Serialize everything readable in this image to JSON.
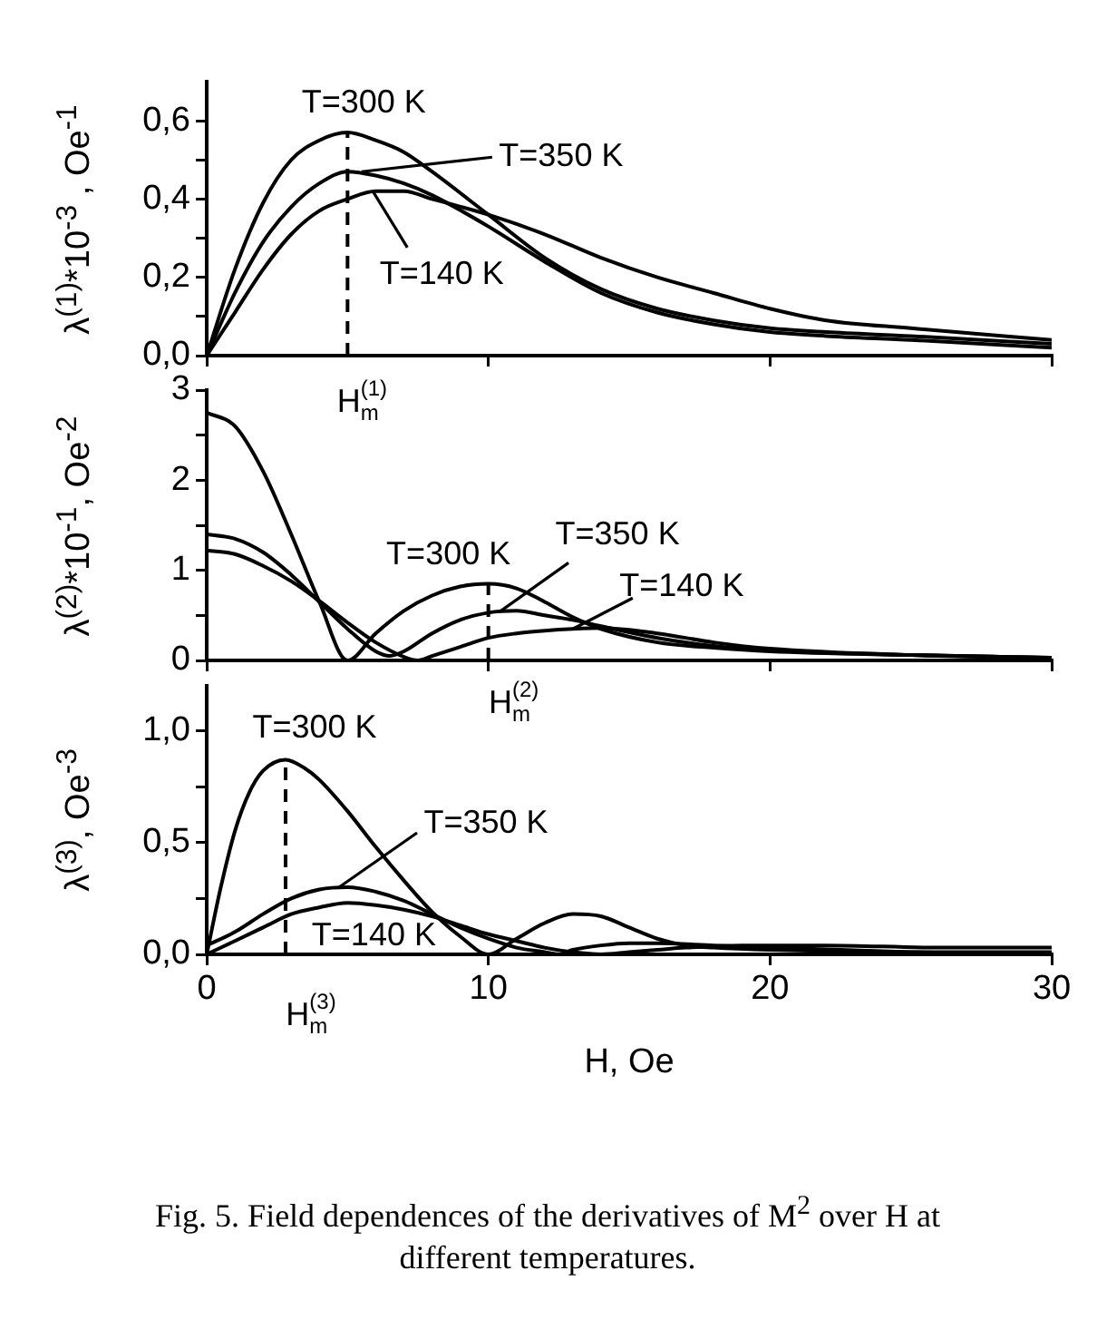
{
  "chart_data": [
    {
      "type": "line",
      "ylabel": "λ$^{(1)}$*10$^{-3}$ , Oe$^{-1}$",
      "xlim": [
        0,
        30
      ],
      "xticks": [
        0,
        10,
        20,
        30
      ],
      "ylim": [
        0,
        0.7
      ],
      "yticks": [
        {
          "value": 0,
          "label": "0,0"
        },
        {
          "value": 0.1,
          "label": null
        },
        {
          "value": 0.2,
          "label": "0,2"
        },
        {
          "value": 0.3,
          "label": null
        },
        {
          "value": 0.4,
          "label": "0,4"
        },
        {
          "value": 0.5,
          "label": null
        },
        {
          "value": 0.6,
          "label": "0,6"
        }
      ],
      "tick_labels": "y",
      "grid": false,
      "legend": false,
      "marker": "none",
      "line_style": "solid",
      "series": [
        {
          "color": "#000000",
          "x": [
            0,
            1,
            2,
            3,
            4,
            5,
            6,
            7,
            8,
            10,
            12,
            14,
            16,
            18,
            20,
            22,
            25,
            30
          ],
          "values": [
            0,
            0.22,
            0.39,
            0.5,
            0.55,
            0.57,
            0.55,
            0.52,
            0.47,
            0.36,
            0.25,
            0.17,
            0.12,
            0.09,
            0.07,
            0.06,
            0.05,
            0.03
          ]
        },
        {
          "color": "#000000",
          "x": [
            0,
            1,
            2,
            3,
            4,
            5,
            6,
            7,
            8,
            10,
            12,
            14,
            16,
            18,
            20,
            22,
            25,
            30
          ],
          "values": [
            0,
            0.16,
            0.29,
            0.38,
            0.44,
            0.47,
            0.46,
            0.44,
            0.41,
            0.33,
            0.24,
            0.16,
            0.11,
            0.08,
            0.06,
            0.05,
            0.04,
            0.02
          ]
        },
        {
          "color": "#000000",
          "x": [
            0,
            1,
            2,
            3,
            4,
            5,
            6,
            7,
            8,
            10,
            12,
            14,
            16,
            18,
            20,
            22,
            25,
            30
          ],
          "values": [
            0,
            0.11,
            0.22,
            0.31,
            0.37,
            0.4,
            0.42,
            0.42,
            0.4,
            0.36,
            0.31,
            0.25,
            0.2,
            0.16,
            0.12,
            0.09,
            0.07,
            0.04
          ]
        },
        {
          "color": "#000000",
          "x": [
            5,
            5
          ],
          "values": [
            0,
            0.57
          ],
          "line_style": "dashed"
        }
      ],
      "annotations": [
        {
          "text": "T=300 K",
          "x": 5,
          "y": 0.57
        },
        {
          "text": "T=350 K",
          "x": 5.5,
          "y": 0.47
        },
        {
          "text": "T=140 K",
          "x": 5.9,
          "y": 0.42
        },
        {
          "text": "H$_{m}$$^{(1)}$",
          "x": 5,
          "y": 0
        }
      ]
    },
    {
      "type": "line",
      "ylabel": "λ$^{(2)}$*10$^{-1}$, Oe$^{-2}$",
      "xlim": [
        0,
        30
      ],
      "xticks": [
        0,
        10,
        20,
        30
      ],
      "ylim": [
        0,
        3
      ],
      "yticks": [
        0,
        {
          "value": 0.5,
          "label": null
        },
        1,
        {
          "value": 1.5,
          "label": null
        },
        2,
        {
          "value": 2.5,
          "label": null
        },
        3
      ],
      "tick_labels": "y",
      "grid": false,
      "legend": false,
      "marker": "none",
      "line_style": "solid",
      "series": [
        {
          "color": "#000000",
          "x": [
            0,
            1,
            2,
            3,
            4,
            5,
            6,
            7,
            8,
            9,
            10,
            11,
            12,
            13,
            14,
            16,
            18,
            20,
            25,
            30
          ],
          "values": [
            2.75,
            2.6,
            2.1,
            1.4,
            0.65,
            0,
            0.3,
            0.55,
            0.72,
            0.82,
            0.85,
            0.8,
            0.65,
            0.48,
            0.35,
            0.2,
            0.14,
            0.1,
            0.06,
            0.03
          ]
        },
        {
          "color": "#000000",
          "x": [
            0,
            1,
            2,
            3,
            4,
            5,
            6,
            6.5,
            7,
            8,
            9,
            10,
            11,
            12,
            13,
            14,
            16,
            18,
            20,
            25,
            30
          ],
          "values": [
            1.4,
            1.35,
            1.2,
            0.95,
            0.65,
            0.35,
            0.1,
            0.05,
            0.1,
            0.3,
            0.45,
            0.53,
            0.55,
            0.5,
            0.45,
            0.38,
            0.25,
            0.16,
            0.11,
            0.06,
            0.03
          ]
        },
        {
          "color": "#000000",
          "x": [
            0,
            1,
            2,
            3,
            4,
            5,
            6,
            7,
            7.5,
            8,
            9,
            10,
            11,
            12,
            13,
            14,
            16,
            18,
            20,
            25,
            30
          ],
          "values": [
            1.22,
            1.18,
            1.05,
            0.88,
            0.66,
            0.42,
            0.2,
            0.04,
            0,
            0.05,
            0.15,
            0.25,
            0.3,
            0.33,
            0.35,
            0.36,
            0.3,
            0.2,
            0.13,
            0.06,
            0.03
          ]
        },
        {
          "color": "#000000",
          "x": [
            10,
            10
          ],
          "values": [
            0,
            0.85
          ],
          "line_style": "dashed"
        }
      ],
      "annotations": [
        {
          "text": "T=300 K",
          "x": 10,
          "y": 0.85
        },
        {
          "text": "T=350 K",
          "x": 10.4,
          "y": 0.54
        },
        {
          "text": "T=140 K",
          "x": 13,
          "y": 0.35
        },
        {
          "text": "H$_{m}$$^{(2)}$",
          "x": 10,
          "y": 0
        }
      ]
    },
    {
      "type": "line",
      "ylabel": "λ$^{(3)}$, Oe$^{-3}$",
      "xlabel": "H, Oe",
      "xlim": [
        0,
        30
      ],
      "xticks": [
        0,
        10,
        20,
        30
      ],
      "ylim": [
        0,
        1.2
      ],
      "yticks": [
        {
          "value": 0,
          "label": "0,0"
        },
        {
          "value": 0.25,
          "label": null
        },
        {
          "value": 0.5,
          "label": "0,5"
        },
        {
          "value": 0.75,
          "label": null
        },
        {
          "value": 1,
          "label": "1,0"
        }
      ],
      "grid": false,
      "legend": false,
      "marker": "none",
      "line_style": "solid",
      "series": [
        {
          "color": "#000000",
          "x": [
            0,
            0.5,
            1,
            1.5,
            2,
            2.8,
            3.5,
            4,
            5,
            6,
            7,
            8,
            9,
            10,
            11,
            12,
            13,
            14,
            15,
            16,
            17,
            18,
            20,
            25,
            30
          ],
          "values": [
            0,
            0.3,
            0.55,
            0.72,
            0.82,
            0.87,
            0.83,
            0.78,
            0.64,
            0.48,
            0.33,
            0.19,
            0.08,
            0,
            0.07,
            0.14,
            0.18,
            0.17,
            0.12,
            0.07,
            0.04,
            0.03,
            0.02,
            0.01,
            0.01
          ]
        },
        {
          "color": "#000000",
          "x": [
            0,
            1,
            2,
            3,
            4,
            5,
            6,
            7,
            8,
            9,
            10,
            11,
            12,
            12.5,
            13,
            14,
            15,
            16,
            18,
            20,
            25,
            30
          ],
          "values": [
            0.04,
            0.1,
            0.18,
            0.25,
            0.29,
            0.3,
            0.28,
            0.24,
            0.18,
            0.12,
            0.07,
            0.03,
            0.01,
            0,
            0.02,
            0.04,
            0.05,
            0.05,
            0.04,
            0.03,
            0.01,
            0
          ]
        },
        {
          "color": "#000000",
          "x": [
            0,
            1,
            2,
            3,
            4,
            5,
            6,
            7,
            8,
            9,
            10,
            11,
            12,
            13,
            14,
            15,
            16,
            17,
            19,
            22,
            26,
            30
          ],
          "values": [
            0,
            0.06,
            0.12,
            0.18,
            0.21,
            0.23,
            0.22,
            0.2,
            0.17,
            0.13,
            0.09,
            0.06,
            0.03,
            0.01,
            0,
            0.01,
            0.02,
            0.03,
            0.04,
            0.04,
            0.03,
            0.03
          ]
        },
        {
          "color": "#000000",
          "x": [
            2.8,
            2.8
          ],
          "values": [
            0,
            0.87
          ],
          "line_style": "dashed"
        }
      ],
      "annotations": [
        {
          "text": "T=300 K",
          "x": 2.8,
          "y": 0.87
        },
        {
          "text": "T=350 K",
          "x": 4.7,
          "y": 0.3
        },
        {
          "text": "T=140 K",
          "x": 6,
          "y": 0.22
        },
        {
          "text": "H$_{m}$$^{(3)}$",
          "x": 2.8,
          "y": 0
        },
        "Fig. 5. Field dependences of the derivatives of M$^{2}$ over H at different temperatures."
      ]
    }
  ]
}
